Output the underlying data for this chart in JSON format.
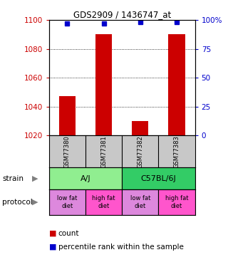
{
  "title": "GDS2909 / 1436747_at",
  "samples": [
    "GSM77380",
    "GSM77381",
    "GSM77382",
    "GSM77383"
  ],
  "bar_values": [
    1047,
    1090,
    1030,
    1090
  ],
  "percentile_values": [
    97,
    97,
    98,
    98
  ],
  "y_min": 1020,
  "y_max": 1100,
  "pct_min": 0,
  "pct_max": 100,
  "bar_color": "#cc0000",
  "pct_color": "#0000cc",
  "y_ticks_left": [
    1020,
    1040,
    1060,
    1080,
    1100
  ],
  "y_ticks_right": [
    0,
    25,
    50,
    75,
    100
  ],
  "y_tick_labels_right": [
    "0",
    "25",
    "50",
    "75",
    "100%"
  ],
  "grid_values": [
    1040,
    1060,
    1080
  ],
  "strain_labels": [
    "A/J",
    "C57BL/6J"
  ],
  "strain_color_aj": "#90ee90",
  "strain_color_c57": "#33cc66",
  "protocol_labels": [
    "low fat\ndiet",
    "high fat\ndiet",
    "low fat\ndiet",
    "high fat\ndiet"
  ],
  "protocol_colors": [
    "#dd88dd",
    "#ff55cc",
    "#dd88dd",
    "#ff55cc"
  ],
  "sample_box_color": "#c8c8c8",
  "legend_count_color": "#cc0000",
  "legend_pct_color": "#0000cc",
  "bg_color": "#ffffff"
}
